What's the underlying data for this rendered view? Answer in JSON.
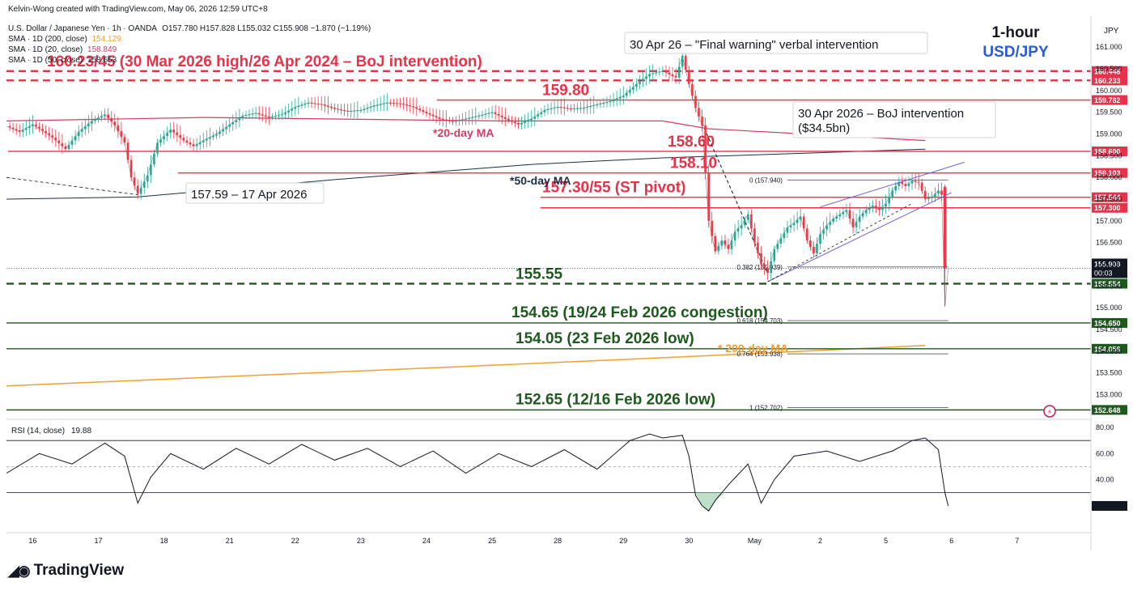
{
  "header": {
    "author_line": "Kelvin-Wong created with TradingView.com, May 06, 2026 12:59 UTC+8",
    "symbol": "U.S. Dollar / Japanese Yen · 1h · OANDA",
    "ohlc": "O157.780 H157.828 L155.032 C155.908 −1.870 (−1.19%)",
    "sma200_label": "SMA · 1D (200, close)",
    "sma200_value": "154.129",
    "sma20_label": "SMA · 1D (20, close)",
    "sma20_value": "158.849",
    "sma50_label": "SMA · 1D (50, close)",
    "sma50_value": "158.653",
    "timeframe": "1-hour",
    "pair": "USD/JPY",
    "currency": "JPY",
    "rsi_label": "RSI (14, close)",
    "rsi_value": "19.88",
    "logo_text": "TradingView"
  },
  "colors": {
    "up": "#22ab94",
    "down": "#f23645",
    "resistance": "#e4334a",
    "support": "#1e5a1e",
    "sma200": "#f0a030",
    "sma20": "#d23c64",
    "sma50": "#1a2e44",
    "channel": "#7b5fd6",
    "price_badge": "#131722"
  },
  "chart_data": [
    {
      "type": "candlestick",
      "title": "",
      "y_axis_ticks": [
        "161.000",
        "160.500",
        "160.000",
        "159.500",
        "159.000",
        "158.500",
        "158.000",
        "157.500",
        "157.000",
        "156.500",
        "156.000",
        "155.500",
        "155.000",
        "154.500",
        "154.000",
        "153.500",
        "153.000"
      ],
      "x_axis_ticks": [
        "16",
        "17",
        "18",
        "21",
        "22",
        "23",
        "24",
        "25",
        "28",
        "29",
        "30",
        "May",
        "2",
        "5",
        "6",
        "7"
      ],
      "ylim": [
        152.45,
        161.6
      ],
      "close_path": [
        {
          "x": 0,
          "y": 159.18
        },
        {
          "x": 4,
          "y": 159.05
        },
        {
          "x": 8,
          "y": 159.22
        },
        {
          "x": 14,
          "y": 158.92
        },
        {
          "x": 18,
          "y": 158.65
        },
        {
          "x": 22,
          "y": 159.05
        },
        {
          "x": 26,
          "y": 159.3
        },
        {
          "x": 30,
          "y": 159.45
        },
        {
          "x": 33,
          "y": 159.2
        },
        {
          "x": 36,
          "y": 158.8
        },
        {
          "x": 38,
          "y": 158.0
        },
        {
          "x": 40,
          "y": 157.62
        },
        {
          "x": 43,
          "y": 158.05
        },
        {
          "x": 46,
          "y": 158.8
        },
        {
          "x": 50,
          "y": 159.1
        },
        {
          "x": 54,
          "y": 158.85
        },
        {
          "x": 57,
          "y": 158.72
        },
        {
          "x": 60,
          "y": 158.85
        },
        {
          "x": 64,
          "y": 159.0
        },
        {
          "x": 68,
          "y": 159.22
        },
        {
          "x": 72,
          "y": 159.42
        },
        {
          "x": 76,
          "y": 159.48
        },
        {
          "x": 80,
          "y": 159.38
        },
        {
          "x": 84,
          "y": 159.45
        },
        {
          "x": 88,
          "y": 159.62
        },
        {
          "x": 92,
          "y": 159.72
        },
        {
          "x": 96,
          "y": 159.68
        },
        {
          "x": 100,
          "y": 159.58
        },
        {
          "x": 104,
          "y": 159.52
        },
        {
          "x": 108,
          "y": 159.55
        },
        {
          "x": 112,
          "y": 159.65
        },
        {
          "x": 116,
          "y": 159.72
        },
        {
          "x": 120,
          "y": 159.7
        },
        {
          "x": 124,
          "y": 159.62
        },
        {
          "x": 128,
          "y": 159.48
        },
        {
          "x": 132,
          "y": 159.35
        },
        {
          "x": 136,
          "y": 159.28
        },
        {
          "x": 140,
          "y": 159.35
        },
        {
          "x": 144,
          "y": 159.42
        },
        {
          "x": 148,
          "y": 159.5
        },
        {
          "x": 152,
          "y": 159.35
        },
        {
          "x": 156,
          "y": 159.22
        },
        {
          "x": 160,
          "y": 159.35
        },
        {
          "x": 164,
          "y": 159.55
        },
        {
          "x": 168,
          "y": 159.62
        },
        {
          "x": 172,
          "y": 159.58
        },
        {
          "x": 176,
          "y": 159.6
        },
        {
          "x": 180,
          "y": 159.68
        },
        {
          "x": 184,
          "y": 159.75
        },
        {
          "x": 188,
          "y": 159.88
        },
        {
          "x": 192,
          "y": 160.15
        },
        {
          "x": 196,
          "y": 160.38
        },
        {
          "x": 200,
          "y": 160.45
        },
        {
          "x": 204,
          "y": 160.3
        },
        {
          "x": 206,
          "y": 160.8
        },
        {
          "x": 208,
          "y": 160.15
        },
        {
          "x": 210,
          "y": 159.6
        },
        {
          "x": 212,
          "y": 159.2
        },
        {
          "x": 214,
          "y": 157.0
        },
        {
          "x": 216,
          "y": 156.3
        },
        {
          "x": 218,
          "y": 156.55
        },
        {
          "x": 220,
          "y": 156.35
        },
        {
          "x": 222,
          "y": 156.75
        },
        {
          "x": 224,
          "y": 156.9
        },
        {
          "x": 226,
          "y": 157.15
        },
        {
          "x": 228,
          "y": 156.5
        },
        {
          "x": 230,
          "y": 156.0
        },
        {
          "x": 232,
          "y": 155.8
        },
        {
          "x": 234,
          "y": 156.35
        },
        {
          "x": 236,
          "y": 156.6
        },
        {
          "x": 238,
          "y": 156.85
        },
        {
          "x": 240,
          "y": 156.95
        },
        {
          "x": 242,
          "y": 157.1
        },
        {
          "x": 244,
          "y": 156.55
        },
        {
          "x": 246,
          "y": 156.25
        },
        {
          "x": 248,
          "y": 156.7
        },
        {
          "x": 250,
          "y": 156.9
        },
        {
          "x": 252,
          "y": 157.05
        },
        {
          "x": 254,
          "y": 157.15
        },
        {
          "x": 256,
          "y": 157.25
        },
        {
          "x": 258,
          "y": 156.85
        },
        {
          "x": 260,
          "y": 157.1
        },
        {
          "x": 262,
          "y": 157.25
        },
        {
          "x": 264,
          "y": 157.35
        },
        {
          "x": 266,
          "y": 157.25
        },
        {
          "x": 268,
          "y": 157.4
        },
        {
          "x": 270,
          "y": 157.7
        },
        {
          "x": 272,
          "y": 157.9
        },
        {
          "x": 274,
          "y": 157.8
        },
        {
          "x": 276,
          "y": 157.92
        },
        {
          "x": 278,
          "y": 157.88
        },
        {
          "x": 280,
          "y": 157.5
        },
        {
          "x": 282,
          "y": 157.55
        },
        {
          "x": 284,
          "y": 157.7
        },
        {
          "x": 285,
          "y": 157.6
        },
        {
          "x": 286,
          "y": 155.03
        },
        {
          "x": 287,
          "y": 155.908
        }
      ],
      "sma20_path": [
        {
          "x": 0,
          "y": 159.3
        },
        {
          "x": 60,
          "y": 159.38
        },
        {
          "x": 150,
          "y": 159.3
        },
        {
          "x": 200,
          "y": 159.3
        },
        {
          "x": 214,
          "y": 159.12
        },
        {
          "x": 280,
          "y": 158.85
        }
      ],
      "sma50_path": [
        {
          "x": 0,
          "y": 157.5
        },
        {
          "x": 40,
          "y": 157.55
        },
        {
          "x": 100,
          "y": 157.95
        },
        {
          "x": 160,
          "y": 158.3
        },
        {
          "x": 200,
          "y": 158.45
        },
        {
          "x": 280,
          "y": 158.65
        }
      ],
      "sma200_path": [
        {
          "x": 0,
          "y": 153.2
        },
        {
          "x": 140,
          "y": 153.65
        },
        {
          "x": 200,
          "y": 153.85
        },
        {
          "x": 280,
          "y": 154.13
        }
      ],
      "levels": [
        {
          "value": 160.448,
          "label": "160.23/45 (30 Mar 2026 high/26 Apr 2024 – BoJ intervention)",
          "axis_label": "160.448",
          "color": "resistance",
          "style": "dashed"
        },
        {
          "value": 160.233,
          "label": "",
          "axis_label": "160.233",
          "color": "resistance",
          "style": "dashed"
        },
        {
          "value": 159.782,
          "label": "159.80",
          "axis_label": "159.782",
          "color": "resistance",
          "style": "solid"
        },
        {
          "value": 158.6,
          "label": "158.60",
          "axis_label": "158.600",
          "color": "resistance",
          "style": "solid"
        },
        {
          "value": 158.103,
          "label": "158.10",
          "axis_label": "158.103",
          "color": "resistance",
          "style": "solid"
        },
        {
          "value": 157.544,
          "label": "157.30/55 (ST pivot)",
          "axis_label": "157.544",
          "color": "resistance",
          "style": "solid"
        },
        {
          "value": 157.3,
          "label": "",
          "axis_label": "157.300",
          "color": "resistance",
          "style": "solid"
        },
        {
          "value": 155.554,
          "label": "155.55",
          "axis_label": "155.554",
          "color": "support",
          "style": "dashed"
        },
        {
          "value": 154.65,
          "label": "154.65 (19/24 Feb 2026 congestion)",
          "axis_label": "154.650",
          "color": "support",
          "style": "solid"
        },
        {
          "value": 154.056,
          "label": "154.05 (23 Feb 2026 low)",
          "axis_label": "154.056",
          "color": "support",
          "style": "solid"
        },
        {
          "value": 152.648,
          "label": "152.65 (12/16 Feb 2026 low)",
          "axis_label": "152.648",
          "color": "support",
          "style": "solid"
        }
      ],
      "fib_levels": [
        {
          "ratio": "0",
          "value": 157.94,
          "label": "0 (157.940)"
        },
        {
          "ratio": "0.382",
          "value": 155.939,
          "label": "0.382 (155.939)"
        },
        {
          "ratio": "0.618",
          "value": 154.703,
          "label": "0.618 (154.703)"
        },
        {
          "ratio": "0.764",
          "value": 153.938,
          "label": "0.764 (153.938)"
        },
        {
          "ratio": "1",
          "value": 152.702,
          "label": "1 (152.702)"
        }
      ],
      "current_price": "155.908",
      "countdown": "00:03",
      "annotations": [
        {
          "text": "30 Apr 26 – \"Final warning\" verbal intervention",
          "boxed": true
        },
        {
          "text": "30 Apr 2026 – BoJ intervention",
          "boxed": true
        },
        {
          "text": "($34.5bn)",
          "boxed": true
        },
        {
          "text": "157.59 – 17 Apr 2026",
          "boxed": true
        },
        {
          "text": "*20-day MA",
          "boxed": false
        },
        {
          "text": "*50-day MA",
          "boxed": false
        },
        {
          "text": "* 200-day MA",
          "boxed": false
        }
      ]
    },
    {
      "type": "line",
      "title": "RSI (14, close)",
      "y_axis_ticks": [
        "80.00",
        "60.00",
        "40.00",
        "20.00"
      ],
      "ylim": [
        0,
        85
      ],
      "reference_lines": [
        70,
        50,
        30
      ],
      "x": [
        0,
        10,
        20,
        30,
        36,
        40,
        44,
        50,
        60,
        70,
        80,
        90,
        100,
        110,
        120,
        130,
        140,
        150,
        160,
        170,
        180,
        190,
        196,
        200,
        206,
        208,
        210,
        212,
        214,
        216,
        220,
        226,
        230,
        234,
        240,
        250,
        260,
        270,
        276,
        280,
        284,
        286,
        287
      ],
      "values": [
        45,
        60,
        52,
        68,
        58,
        22,
        42,
        60,
        48,
        64,
        52,
        67,
        55,
        64,
        50,
        62,
        45,
        60,
        50,
        63,
        48,
        70,
        75,
        72,
        74,
        58,
        28,
        20,
        16,
        24,
        36,
        52,
        22,
        40,
        58,
        62,
        54,
        62,
        70,
        72,
        63,
        30,
        19.88
      ]
    }
  ]
}
